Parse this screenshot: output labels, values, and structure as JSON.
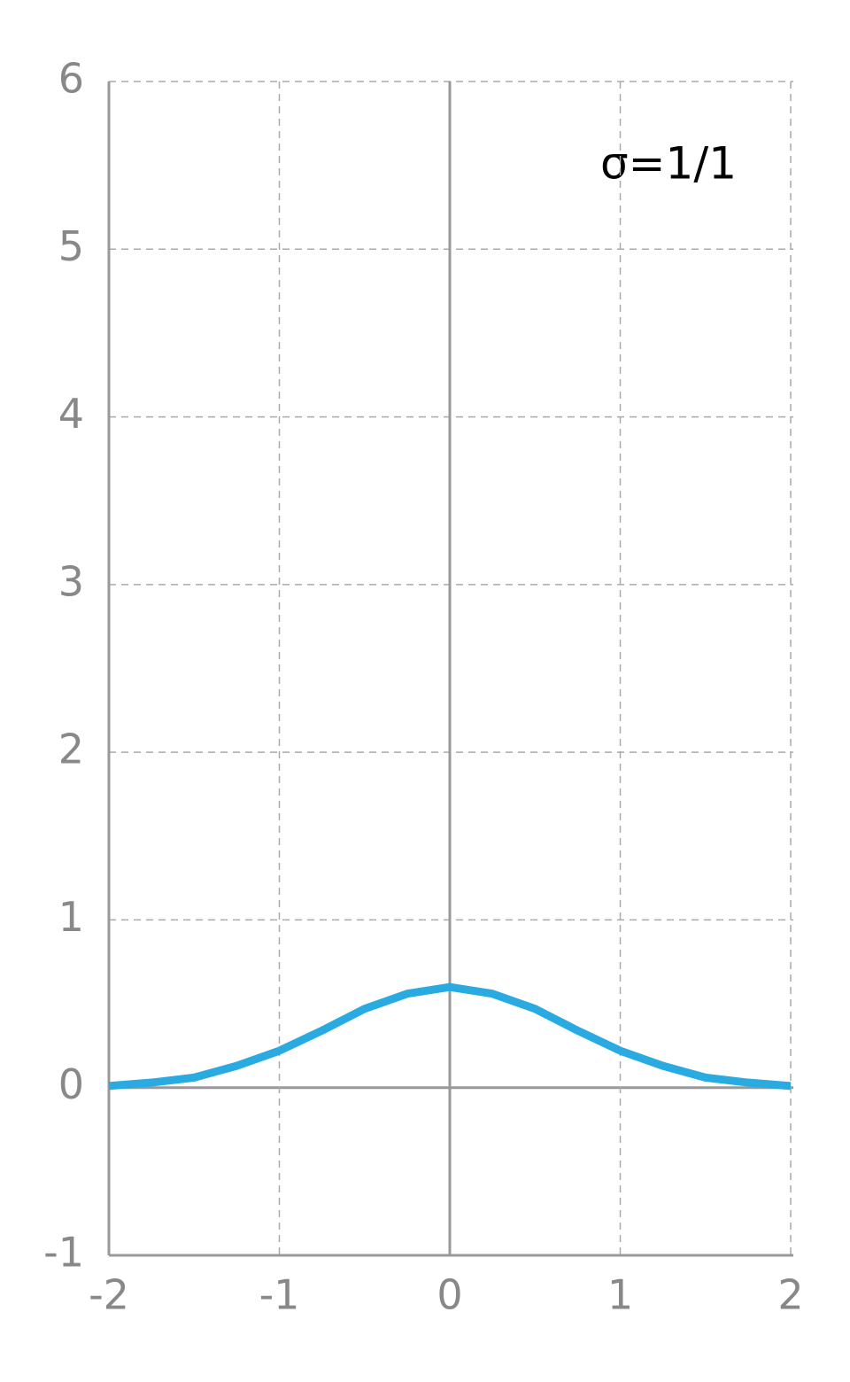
{
  "chart_data": {
    "type": "line",
    "annotation": "σ=1/1",
    "x": [
      -2,
      -1.75,
      -1.5,
      -1.25,
      -1,
      -0.75,
      -0.5,
      -0.25,
      0,
      0.25,
      0.5,
      0.75,
      1,
      1.25,
      1.5,
      1.75,
      2
    ],
    "values": [
      0.01,
      0.03,
      0.06,
      0.13,
      0.22,
      0.34,
      0.47,
      0.56,
      0.6,
      0.56,
      0.47,
      0.34,
      0.22,
      0.13,
      0.06,
      0.03,
      0.01
    ],
    "color": "#29abe2",
    "xlim": [
      -2,
      2
    ],
    "xticks": [
      -2,
      -1,
      0,
      1,
      2
    ],
    "ylim": [
      -1,
      6
    ],
    "yticks": [
      -1,
      0,
      1,
      2,
      3,
      4,
      5,
      6
    ],
    "grid": true
  }
}
